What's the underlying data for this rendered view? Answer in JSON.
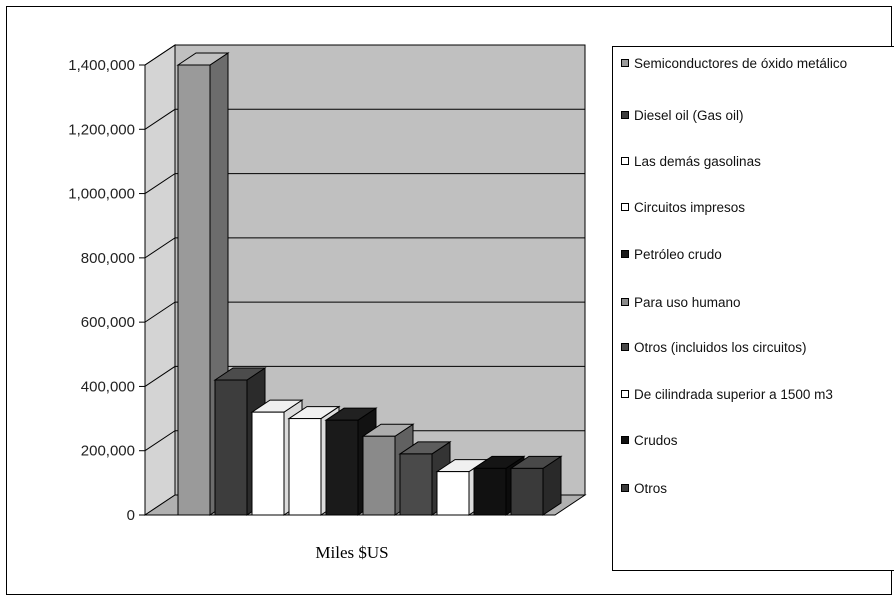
{
  "chart_data": {
    "type": "bar",
    "style": "3d-clustered-column",
    "xlabel": "Miles $US",
    "ylim": [
      0,
      1400000
    ],
    "yticks": [
      "0",
      "200,000",
      "400,000",
      "600,000",
      "800,000",
      "1,000,000",
      "1,200,000",
      "1,400,000"
    ],
    "grid": true,
    "legend_position": "right",
    "series": [
      {
        "name": "Semiconductores de óxido metálico",
        "value": 1400000,
        "color": "#9a9a9a"
      },
      {
        "name": "Diesel oil (Gas oil)",
        "value": 420000,
        "color": "#3d3d3d"
      },
      {
        "name": "Las demás gasolinas",
        "value": 320000,
        "color": "#ffffff"
      },
      {
        "name": "Circuitos impresos",
        "value": 300000,
        "color": "#ffffff"
      },
      {
        "name": "Petróleo crudo",
        "value": 295000,
        "color": "#1a1a1a"
      },
      {
        "name": "Para uso humano",
        "value": 245000,
        "color": "#8a8a8a"
      },
      {
        "name": "Otros (incluidos los circuitos)",
        "value": 190000,
        "color": "#4a4a4a"
      },
      {
        "name": "De cilindrada superior a 1500 m3",
        "value": 135000,
        "color": "#ffffff"
      },
      {
        "name": "Crudos",
        "value": 145000,
        "color": "#111111"
      },
      {
        "name": "Otros",
        "value": 145000,
        "color": "#3a3a3a"
      }
    ]
  }
}
